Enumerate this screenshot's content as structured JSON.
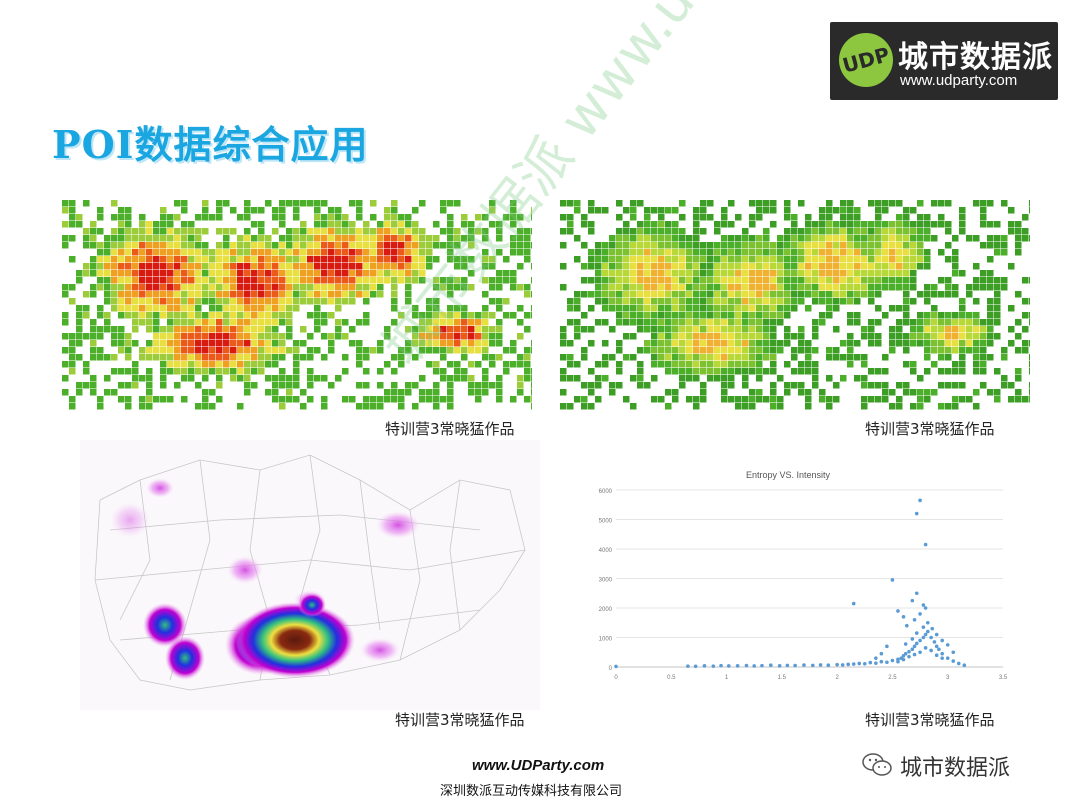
{
  "logo": {
    "brand_cn": "城市数据派",
    "url": "www.udparty.com",
    "mark_text": "UDP",
    "colors": {
      "background": "#2a2a2a",
      "accent": "#8dc63f",
      "text": "#ffffff"
    }
  },
  "title": "POI数据综合应用",
  "panels": [
    {
      "caption": "特训营3常晓猛作品",
      "kind": "grid-heatmap-hot"
    },
    {
      "caption": "特训营3常晓猛作品",
      "kind": "grid-heatmap-green"
    },
    {
      "caption": "特训营3常晓猛作品",
      "kind": "kernel-density-map"
    },
    {
      "caption": "特训营3常晓猛作品",
      "kind": "scatter-chart"
    }
  ],
  "chart_data": {
    "type": "scatter",
    "title": "Entropy VS. Intensity",
    "xlabel": "",
    "ylabel": "",
    "xlim": [
      0,
      3.5
    ],
    "ylim": [
      0,
      6000
    ],
    "x_ticks": [
      "0",
      "0.5",
      "1",
      "1.5",
      "2",
      "2.5",
      "3",
      "3.5"
    ],
    "y_ticks": [
      "0",
      "1000",
      "2000",
      "3000",
      "4000",
      "5000",
      "6000"
    ],
    "grid": true,
    "legend": "none",
    "series": [
      {
        "color": "#5b9bd5",
        "points": [
          [
            0.0,
            20
          ],
          [
            0.65,
            30
          ],
          [
            0.72,
            25
          ],
          [
            0.8,
            40
          ],
          [
            0.88,
            30
          ],
          [
            0.95,
            45
          ],
          [
            1.02,
            35
          ],
          [
            1.1,
            40
          ],
          [
            1.18,
            50
          ],
          [
            1.25,
            35
          ],
          [
            1.32,
            45
          ],
          [
            1.4,
            60
          ],
          [
            1.48,
            40
          ],
          [
            1.55,
            55
          ],
          [
            1.62,
            50
          ],
          [
            1.7,
            65
          ],
          [
            1.78,
            55
          ],
          [
            1.85,
            70
          ],
          [
            1.92,
            60
          ],
          [
            2.0,
            80
          ],
          [
            2.05,
            70
          ],
          [
            2.1,
            90
          ],
          [
            2.15,
            100
          ],
          [
            2.2,
            120
          ],
          [
            2.25,
            110
          ],
          [
            2.3,
            150
          ],
          [
            2.35,
            130
          ],
          [
            2.4,
            180
          ],
          [
            2.45,
            160
          ],
          [
            2.5,
            220
          ],
          [
            2.55,
            260
          ],
          [
            2.58,
            300
          ],
          [
            2.6,
            380
          ],
          [
            2.62,
            450
          ],
          [
            2.65,
            520
          ],
          [
            2.68,
            600
          ],
          [
            2.7,
            700
          ],
          [
            2.72,
            800
          ],
          [
            2.75,
            900
          ],
          [
            2.78,
            1000
          ],
          [
            2.8,
            1100
          ],
          [
            2.82,
            1200
          ],
          [
            2.85,
            1000
          ],
          [
            2.88,
            850
          ],
          [
            2.9,
            700
          ],
          [
            2.92,
            600
          ],
          [
            2.95,
            450
          ],
          [
            3.0,
            300
          ],
          [
            3.05,
            200
          ],
          [
            3.1,
            120
          ],
          [
            3.15,
            60
          ],
          [
            2.55,
            180
          ],
          [
            2.6,
            250
          ],
          [
            2.65,
            350
          ],
          [
            2.7,
            420
          ],
          [
            2.75,
            500
          ],
          [
            2.8,
            650
          ],
          [
            2.85,
            560
          ],
          [
            2.9,
            400
          ],
          [
            2.95,
            300
          ],
          [
            2.62,
            780
          ],
          [
            2.68,
            950
          ],
          [
            2.72,
            1150
          ],
          [
            2.78,
            1350
          ],
          [
            2.82,
            1500
          ],
          [
            2.7,
            1600
          ],
          [
            2.75,
            1800
          ],
          [
            2.8,
            2000
          ],
          [
            2.68,
            2250
          ],
          [
            2.72,
            2500
          ],
          [
            2.78,
            2100
          ],
          [
            2.15,
            2150
          ],
          [
            2.5,
            2950
          ],
          [
            2.55,
            1900
          ],
          [
            2.6,
            1700
          ],
          [
            2.63,
            1400
          ],
          [
            2.86,
            1300
          ],
          [
            2.9,
            1100
          ],
          [
            2.95,
            900
          ],
          [
            3.0,
            750
          ],
          [
            3.05,
            500
          ],
          [
            2.45,
            700
          ],
          [
            2.4,
            450
          ],
          [
            2.35,
            300
          ],
          [
            2.72,
            5200
          ],
          [
            2.75,
            5650
          ],
          [
            2.8,
            4150
          ]
        ]
      }
    ]
  },
  "watermark": "城市数据派 www.udparty.com",
  "footer": {
    "url": "www.UDParty.com",
    "company": "深圳数派互动传媒科技有限公司",
    "wechat_label": "城市数据派",
    "wechat_icon": "wechat-icon"
  }
}
